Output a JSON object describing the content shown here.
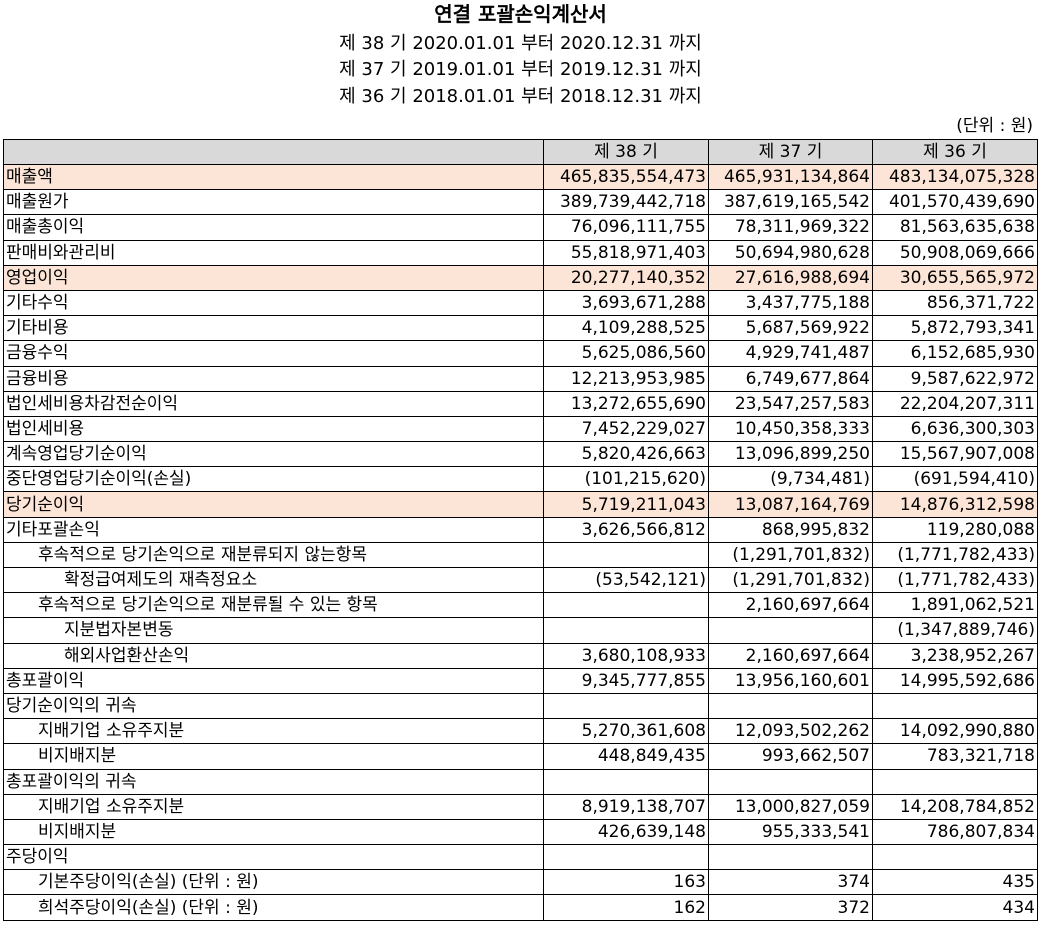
{
  "title": "연결 포괄손익계산서",
  "periods": [
    "제 38 기 2020.01.01 부터 2020.12.31 까지",
    "제 37 기 2019.01.01 부터 2019.12.31 까지",
    "제 36 기 2018.01.01 부터 2018.12.31 까지"
  ],
  "unit": "(단위 : 원)",
  "highlight_color": "#fce4d6",
  "header_color": "#d9d9d9",
  "columns": [
    "",
    "제 38 기",
    "제 37 기",
    "제 36 기"
  ],
  "rows": [
    {
      "label": "매출액",
      "level": 0,
      "highlight": true,
      "values": [
        "465,835,554,473",
        "465,931,134,864",
        "483,134,075,328"
      ]
    },
    {
      "label": "매출원가",
      "level": 0,
      "values": [
        "389,739,442,718",
        "387,619,165,542",
        "401,570,439,690"
      ]
    },
    {
      "label": "매출총이익",
      "level": 0,
      "values": [
        "76,096,111,755",
        "78,311,969,322",
        "81,563,635,638"
      ]
    },
    {
      "label": "판매비와관리비",
      "level": 0,
      "values": [
        "55,818,971,403",
        "50,694,980,628",
        "50,908,069,666"
      ]
    },
    {
      "label": "영업이익",
      "level": 0,
      "highlight": true,
      "values": [
        "20,277,140,352",
        "27,616,988,694",
        "30,655,565,972"
      ]
    },
    {
      "label": "기타수익",
      "level": 0,
      "values": [
        "3,693,671,288",
        "3,437,775,188",
        "856,371,722"
      ]
    },
    {
      "label": "기타비용",
      "level": 0,
      "values": [
        "4,109,288,525",
        "5,687,569,922",
        "5,872,793,341"
      ]
    },
    {
      "label": "금융수익",
      "level": 0,
      "values": [
        "5,625,086,560",
        "4,929,741,487",
        "6,152,685,930"
      ]
    },
    {
      "label": "금융비용",
      "level": 0,
      "values": [
        "12,213,953,985",
        "6,749,677,864",
        "9,587,622,972"
      ]
    },
    {
      "label": "법인세비용차감전순이익",
      "level": 0,
      "values": [
        "13,272,655,690",
        "23,547,257,583",
        "22,204,207,311"
      ]
    },
    {
      "label": "법인세비용",
      "level": 0,
      "values": [
        "7,452,229,027",
        "10,450,358,333",
        "6,636,300,303"
      ]
    },
    {
      "label": "계속영업당기순이익",
      "level": 0,
      "values": [
        "5,820,426,663",
        "13,096,899,250",
        "15,567,907,008"
      ]
    },
    {
      "label": "중단영업당기순이익(손실)",
      "level": 0,
      "values": [
        "(101,215,620)",
        "(9,734,481)",
        "(691,594,410)"
      ]
    },
    {
      "label": "당기순이익",
      "level": 0,
      "highlight": true,
      "values": [
        "5,719,211,043",
        "13,087,164,769",
        "14,876,312,598"
      ]
    },
    {
      "label": "기타포괄손익",
      "level": 0,
      "values": [
        "3,626,566,812",
        "868,995,832",
        "119,280,088"
      ]
    },
    {
      "label": "후속적으로 당기손익으로 재분류되지 않는항목",
      "level": 1,
      "values": [
        "",
        "(1,291,701,832)",
        "(1,771,782,433)"
      ]
    },
    {
      "label": "확정급여제도의 재측정요소",
      "level": 2,
      "values": [
        "(53,542,121)",
        "(1,291,701,832)",
        "(1,771,782,433)"
      ]
    },
    {
      "label": "후속적으로 당기손익으로 재분류될 수 있는 항목",
      "level": 1,
      "values": [
        "",
        "2,160,697,664",
        "1,891,062,521"
      ]
    },
    {
      "label": "지분법자본변동",
      "level": 2,
      "values": [
        "",
        "",
        "(1,347,889,746)"
      ]
    },
    {
      "label": "해외사업환산손익",
      "level": 2,
      "values": [
        "3,680,108,933",
        "2,160,697,664",
        "3,238,952,267"
      ]
    },
    {
      "label": "총포괄이익",
      "level": 0,
      "values": [
        "9,345,777,855",
        "13,956,160,601",
        "14,995,592,686"
      ]
    },
    {
      "label": "당기순이익의 귀속",
      "level": 0,
      "values": [
        "",
        "",
        ""
      ]
    },
    {
      "label": "지배기업 소유주지분",
      "level": 1,
      "values": [
        "5,270,361,608",
        "12,093,502,262",
        "14,092,990,880"
      ]
    },
    {
      "label": "비지배지분",
      "level": 1,
      "values": [
        "448,849,435",
        "993,662,507",
        "783,321,718"
      ]
    },
    {
      "label": "총포괄이익의 귀속",
      "level": 0,
      "values": [
        "",
        "",
        ""
      ]
    },
    {
      "label": "지배기업 소유주지분",
      "level": 1,
      "values": [
        "8,919,138,707",
        "13,000,827,059",
        "14,208,784,852"
      ]
    },
    {
      "label": "비지배지분",
      "level": 1,
      "values": [
        "426,639,148",
        "955,333,541",
        "786,807,834"
      ]
    },
    {
      "label": "주당이익",
      "level": 0,
      "values": [
        "",
        "",
        ""
      ]
    },
    {
      "label": "기본주당이익(손실) (단위 : 원)",
      "level": 1,
      "values": [
        "163",
        "374",
        "435"
      ]
    },
    {
      "label": "희석주당이익(손실) (단위 : 원)",
      "level": 1,
      "values": [
        "162",
        "372",
        "434"
      ]
    }
  ]
}
